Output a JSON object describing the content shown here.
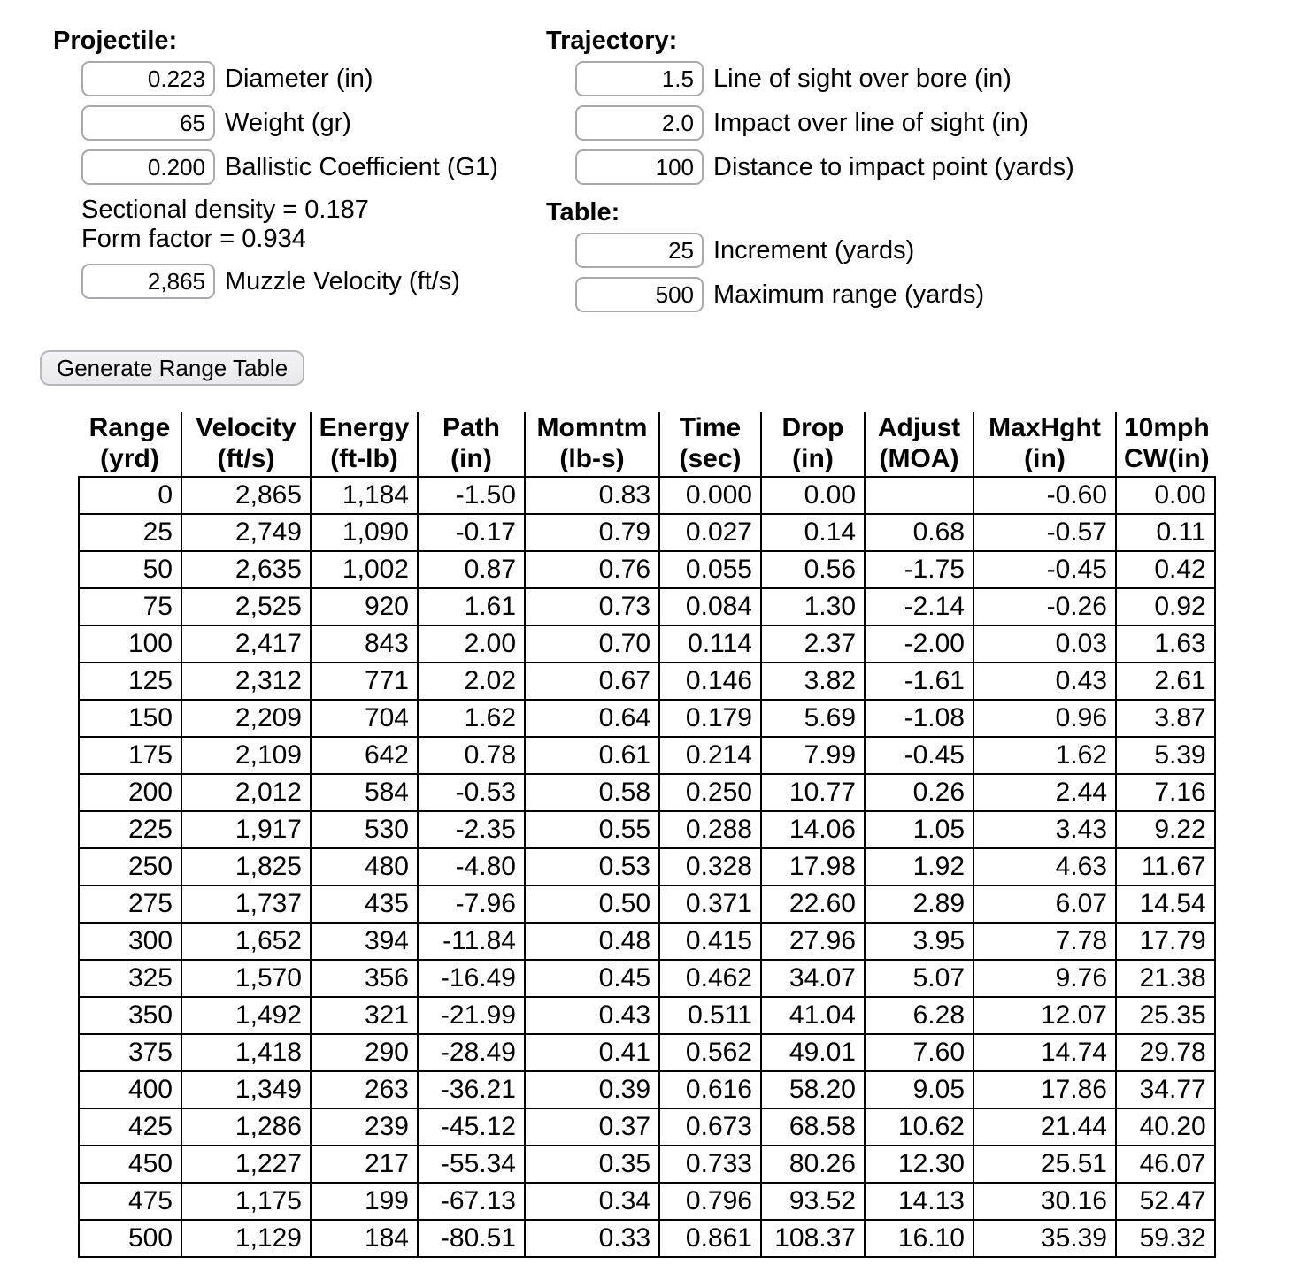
{
  "projectile": {
    "heading": "Projectile:",
    "diameter": {
      "value": "0.223",
      "label": "Diameter (in)"
    },
    "weight": {
      "value": "65",
      "label": "Weight (gr)"
    },
    "ballistic_coefficient": {
      "value": "0.200",
      "label": "Ballistic Coefficient (G1)"
    },
    "sectional_density_text": "Sectional density = 0.187",
    "form_factor_text": "Form factor = 0.934",
    "muzzle_velocity": {
      "value": "2,865",
      "label": "Muzzle Velocity (ft/s)"
    }
  },
  "trajectory": {
    "heading": "Trajectory:",
    "line_of_sight_over_bore": {
      "value": "1.5",
      "label": "Line of sight over bore (in)"
    },
    "impact_over_line_of_sight": {
      "value": "2.0",
      "label": "Impact over line of sight (in)"
    },
    "distance_to_impact": {
      "value": "100",
      "label": "Distance to impact point (yards)"
    }
  },
  "table_settings": {
    "heading": "Table:",
    "increment": {
      "value": "25",
      "label": "Increment (yards)"
    },
    "maximum_range": {
      "value": "500",
      "label": "Maximum range (yards)"
    }
  },
  "generate_button_label": "Generate Range Table",
  "range_table": {
    "headers": [
      [
        "Range",
        "(yrd)"
      ],
      [
        "Velocity",
        "(ft/s)"
      ],
      [
        "Energy",
        "(ft-lb)"
      ],
      [
        "Path",
        "(in)"
      ],
      [
        "Momntm",
        "(lb-s)"
      ],
      [
        "Time",
        "(sec)"
      ],
      [
        "Drop",
        "(in)"
      ],
      [
        "Adjust",
        "(MOA)"
      ],
      [
        "MaxHght",
        "(in)"
      ],
      [
        "10mph",
        "CW(in)"
      ]
    ],
    "rows": [
      [
        "0",
        "2,865",
        "1,184",
        "-1.50",
        "0.83",
        "0.000",
        "0.00",
        "",
        "-0.60",
        "0.00"
      ],
      [
        "25",
        "2,749",
        "1,090",
        "-0.17",
        "0.79",
        "0.027",
        "0.14",
        "0.68",
        "-0.57",
        "0.11"
      ],
      [
        "50",
        "2,635",
        "1,002",
        "0.87",
        "0.76",
        "0.055",
        "0.56",
        "-1.75",
        "-0.45",
        "0.42"
      ],
      [
        "75",
        "2,525",
        "920",
        "1.61",
        "0.73",
        "0.084",
        "1.30",
        "-2.14",
        "-0.26",
        "0.92"
      ],
      [
        "100",
        "2,417",
        "843",
        "2.00",
        "0.70",
        "0.114",
        "2.37",
        "-2.00",
        "0.03",
        "1.63"
      ],
      [
        "125",
        "2,312",
        "771",
        "2.02",
        "0.67",
        "0.146",
        "3.82",
        "-1.61",
        "0.43",
        "2.61"
      ],
      [
        "150",
        "2,209",
        "704",
        "1.62",
        "0.64",
        "0.179",
        "5.69",
        "-1.08",
        "0.96",
        "3.87"
      ],
      [
        "175",
        "2,109",
        "642",
        "0.78",
        "0.61",
        "0.214",
        "7.99",
        "-0.45",
        "1.62",
        "5.39"
      ],
      [
        "200",
        "2,012",
        "584",
        "-0.53",
        "0.58",
        "0.250",
        "10.77",
        "0.26",
        "2.44",
        "7.16"
      ],
      [
        "225",
        "1,917",
        "530",
        "-2.35",
        "0.55",
        "0.288",
        "14.06",
        "1.05",
        "3.43",
        "9.22"
      ],
      [
        "250",
        "1,825",
        "480",
        "-4.80",
        "0.53",
        "0.328",
        "17.98",
        "1.92",
        "4.63",
        "11.67"
      ],
      [
        "275",
        "1,737",
        "435",
        "-7.96",
        "0.50",
        "0.371",
        "22.60",
        "2.89",
        "6.07",
        "14.54"
      ],
      [
        "300",
        "1,652",
        "394",
        "-11.84",
        "0.48",
        "0.415",
        "27.96",
        "3.95",
        "7.78",
        "17.79"
      ],
      [
        "325",
        "1,570",
        "356",
        "-16.49",
        "0.45",
        "0.462",
        "34.07",
        "5.07",
        "9.76",
        "21.38"
      ],
      [
        "350",
        "1,492",
        "321",
        "-21.99",
        "0.43",
        "0.511",
        "41.04",
        "6.28",
        "12.07",
        "25.35"
      ],
      [
        "375",
        "1,418",
        "290",
        "-28.49",
        "0.41",
        "0.562",
        "49.01",
        "7.60",
        "14.74",
        "29.78"
      ],
      [
        "400",
        "1,349",
        "263",
        "-36.21",
        "0.39",
        "0.616",
        "58.20",
        "9.05",
        "17.86",
        "34.77"
      ],
      [
        "425",
        "1,286",
        "239",
        "-45.12",
        "0.37",
        "0.673",
        "68.58",
        "10.62",
        "21.44",
        "40.20"
      ],
      [
        "450",
        "1,227",
        "217",
        "-55.34",
        "0.35",
        "0.733",
        "80.26",
        "12.30",
        "25.51",
        "46.07"
      ],
      [
        "475",
        "1,175",
        "199",
        "-67.13",
        "0.34",
        "0.796",
        "93.52",
        "14.13",
        "30.16",
        "52.47"
      ],
      [
        "500",
        "1,129",
        "184",
        "-80.51",
        "0.33",
        "0.861",
        "108.37",
        "16.10",
        "35.39",
        "59.32"
      ]
    ]
  }
}
